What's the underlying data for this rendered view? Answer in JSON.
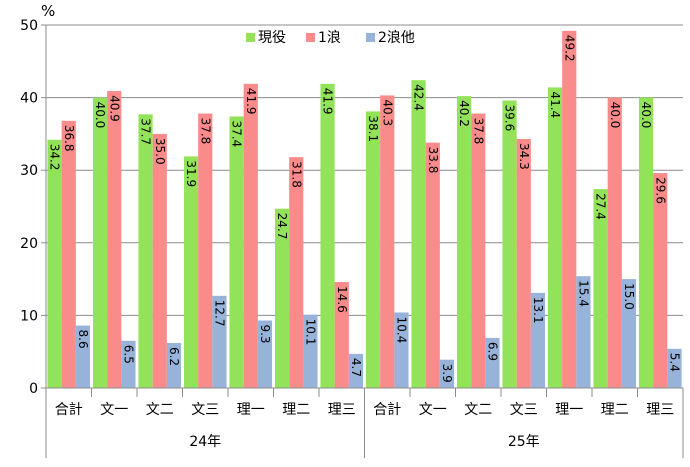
{
  "chart_data": {
    "type": "bar",
    "y_unit_label": "%",
    "ylim": [
      0,
      50
    ],
    "y_ticks": [
      "0",
      "10",
      "20",
      "30",
      "40",
      "50"
    ],
    "grid": true,
    "legend_position": "top",
    "groups": [
      {
        "label": "24年",
        "categories": [
          "合計",
          "文一",
          "文二",
          "文三",
          "理一",
          "理二",
          "理三"
        ]
      },
      {
        "label": "25年",
        "categories": [
          "合計",
          "文一",
          "文二",
          "文三",
          "理一",
          "理二",
          "理三"
        ]
      }
    ],
    "series": [
      {
        "name": "現役",
        "color": "#92e35a",
        "values": [
          34.2,
          40.0,
          37.7,
          31.9,
          37.4,
          24.7,
          41.9,
          38.1,
          42.4,
          40.2,
          39.6,
          41.4,
          27.4,
          40.0
        ],
        "labels": [
          "34.2",
          "40.0",
          "37.7",
          "31.9",
          "37.4",
          "24.7",
          "41.9",
          "38.1",
          "42.4",
          "40.2",
          "39.6",
          "41.4",
          "27.4",
          "40.0"
        ]
      },
      {
        "name": "1浪",
        "color": "#f98b8b",
        "values": [
          36.8,
          40.9,
          35.0,
          37.8,
          41.9,
          31.8,
          14.6,
          40.3,
          33.8,
          37.8,
          34.3,
          49.2,
          40.0,
          29.6
        ],
        "labels": [
          "36.8",
          "40.9",
          "35.0",
          "37.8",
          "41.9",
          "31.8",
          "14.6",
          "40.3",
          "33.8",
          "37.8",
          "34.3",
          "49.2",
          "40.0",
          "29.6"
        ]
      },
      {
        "name": "2浪他",
        "color": "#97b3d9",
        "values": [
          8.6,
          6.5,
          6.2,
          12.7,
          9.3,
          10.1,
          4.7,
          10.4,
          3.9,
          6.9,
          13.1,
          15.4,
          15.0,
          5.4
        ],
        "labels": [
          "8.6",
          "6.5",
          "6.2",
          "12.7",
          "9.3",
          "10.1",
          "4.7",
          "10.4",
          "3.9",
          "6.9",
          "13.1",
          "15.4",
          "15.0",
          "5.4"
        ]
      }
    ]
  }
}
